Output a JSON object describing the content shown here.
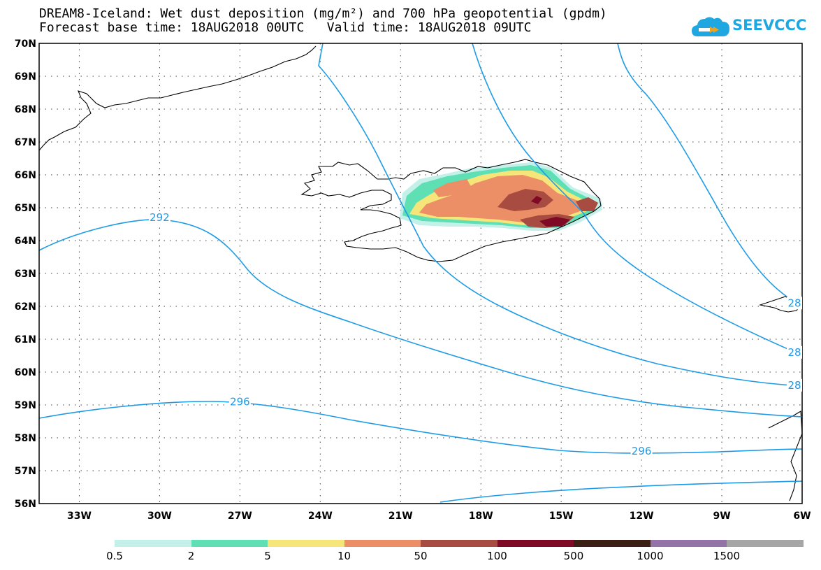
{
  "title": {
    "line1": "DREAM8-Iceland: Wet dust deposition (mg/m²) and 700 hPa geopotential (gpdm)",
    "line2": "Forecast base time: 18AUG2018 00UTC   Valid time: 18AUG2018 09UTC"
  },
  "logo": {
    "text": "SEEVCCC",
    "icon": "cloud-icon"
  },
  "map": {
    "lon_range": [
      -34.5,
      -6
    ],
    "lat_range": [
      56,
      70
    ],
    "grid": true,
    "lon_ticks": [
      "33W",
      "30W",
      "27W",
      "24W",
      "21W",
      "18W",
      "15W",
      "12W",
      "9W",
      "6W"
    ],
    "lat_ticks": [
      "56N",
      "57N",
      "58N",
      "59N",
      "60N",
      "61N",
      "62N",
      "63N",
      "64N",
      "65N",
      "66N",
      "67N",
      "68N",
      "69N",
      "70N"
    ],
    "contour_labels": [
      {
        "text": "292",
        "lon": -30,
        "lat": 64.7
      },
      {
        "text": "296",
        "lon": -27,
        "lat": 59.1
      },
      {
        "text": "296",
        "lon": -12,
        "lat": 57.6
      },
      {
        "text": "28",
        "lon": -6.1,
        "lat": 62.1
      },
      {
        "text": "28",
        "lon": -6.1,
        "lat": 60.6
      },
      {
        "text": "28",
        "lon": -6.1,
        "lat": 59.6
      }
    ],
    "contour_color": "#1e9be6",
    "dust_area": "north-east Iceland"
  },
  "legend": {
    "colors": [
      "#c4f0ea",
      "#5edfb4",
      "#f6e67a",
      "#ec8e66",
      "#a84b41",
      "#7e0a26",
      "#3b1f14",
      "#9373a8",
      "#a6a6a6"
    ],
    "labels": [
      "0.5",
      "2",
      "5",
      "10",
      "50",
      "100",
      "500",
      "1000",
      "1500"
    ]
  }
}
